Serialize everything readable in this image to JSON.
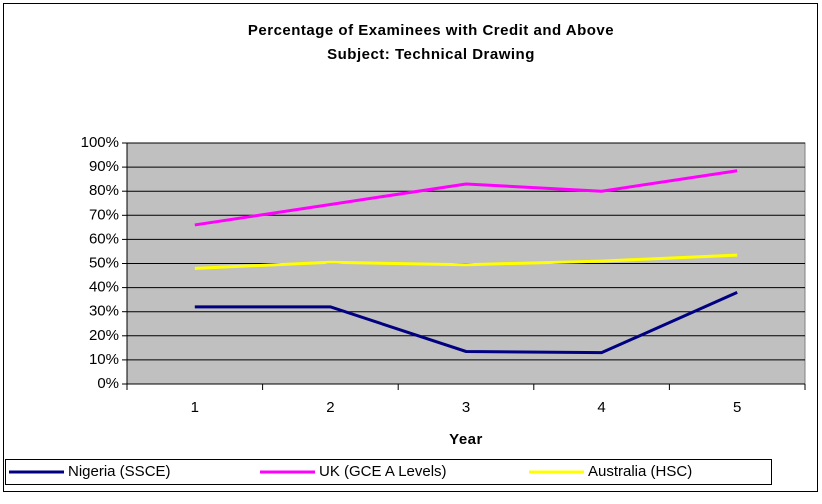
{
  "chart_data": {
    "type": "line",
    "title": [
      "Percentage of Examinees with Credit and Above",
      "Subject: Technical Drawing"
    ],
    "x_label": "Year",
    "categories": [
      "1",
      "2",
      "3",
      "4",
      "5"
    ],
    "series": [
      {
        "name": "Nigeria (SSCE)",
        "color": "#000080",
        "values": [
          32,
          32,
          13.5,
          13,
          38
        ]
      },
      {
        "name": "UK (GCE A Levels)",
        "color": "#ff00ff",
        "values": [
          66,
          74.5,
          83,
          80,
          88.5
        ]
      },
      {
        "name": "Australia (HSC)",
        "color": "#ffff00",
        "values": [
          48,
          50.5,
          49.5,
          51,
          53.5
        ]
      }
    ],
    "ylim": [
      0,
      100
    ],
    "yticks": [
      {
        "value": 0,
        "label": "0%"
      },
      {
        "value": 10,
        "label": "10%"
      },
      {
        "value": 20,
        "label": "20%"
      },
      {
        "value": 30,
        "label": "30%"
      },
      {
        "value": 40,
        "label": "40%"
      },
      {
        "value": 50,
        "label": "50%"
      },
      {
        "value": 60,
        "label": "60%"
      },
      {
        "value": 70,
        "label": "70%"
      },
      {
        "value": 80,
        "label": "80%"
      },
      {
        "value": 90,
        "label": "90%"
      },
      {
        "value": 100,
        "label": "100%"
      }
    ],
    "grid": true,
    "legend": "bottom"
  }
}
